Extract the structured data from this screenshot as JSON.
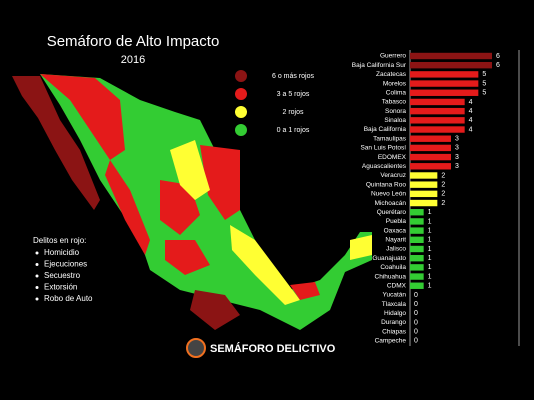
{
  "title": "Semáforo de Alto Impacto",
  "subtitle": "2016",
  "legend": [
    {
      "label": "6 o más rojos",
      "color": "#8b1414"
    },
    {
      "label": "3 a 5 rojos",
      "color": "#e41b1b"
    },
    {
      "label": "2 rojos",
      "color": "#ffff33"
    },
    {
      "label": "0 a 1 rojos",
      "color": "#33cc33"
    }
  ],
  "crimes_heading": "Delitos en rojo:",
  "crimes": [
    "Homicidio",
    "Ejecuciones",
    "Secuestro",
    "Extorsión",
    "Robo de Auto"
  ],
  "logo": "SEMÁFORO DELICTIVO",
  "chart_data": {
    "type": "bar",
    "orientation": "horizontal",
    "categories": [
      "Guerrero",
      "Baja California Sur",
      "Zacatecas",
      "Morelos",
      "Colima",
      "Tabasco",
      "Sonora",
      "Sinaloa",
      "Baja California",
      "Tamaulipas",
      "San Luis Potosí",
      "EDOMEX",
      "Aguascalientes",
      "Veracruz",
      "Quintana Roo",
      "Nuevo León",
      "Michoacán",
      "Querétaro",
      "Puebla",
      "Oaxaca",
      "Nayarit",
      "Jalisco",
      "Guanajuato",
      "Coahuila",
      "Chihuahua",
      "CDMX",
      "Yucatán",
      "Tlaxcala",
      "Hidalgo",
      "Durango",
      "Chiapas",
      "Campeche"
    ],
    "values": [
      6,
      6,
      5,
      5,
      5,
      4,
      4,
      4,
      4,
      3,
      3,
      3,
      3,
      2,
      2,
      2,
      2,
      1,
      1,
      1,
      1,
      1,
      1,
      1,
      1,
      1,
      0,
      0,
      0,
      0,
      0,
      0
    ],
    "colors": [
      "#8b1414",
      "#8b1414",
      "#e41b1b",
      "#e41b1b",
      "#e41b1b",
      "#e41b1b",
      "#e41b1b",
      "#e41b1b",
      "#e41b1b",
      "#e41b1b",
      "#e41b1b",
      "#e41b1b",
      "#e41b1b",
      "#ffff33",
      "#ffff33",
      "#ffff33",
      "#ffff33",
      "#33cc33",
      "#33cc33",
      "#33cc33",
      "#33cc33",
      "#33cc33",
      "#33cc33",
      "#33cc33",
      "#33cc33",
      "#33cc33",
      "#33cc33",
      "#33cc33",
      "#33cc33",
      "#33cc33",
      "#33cc33",
      "#33cc33"
    ]
  }
}
